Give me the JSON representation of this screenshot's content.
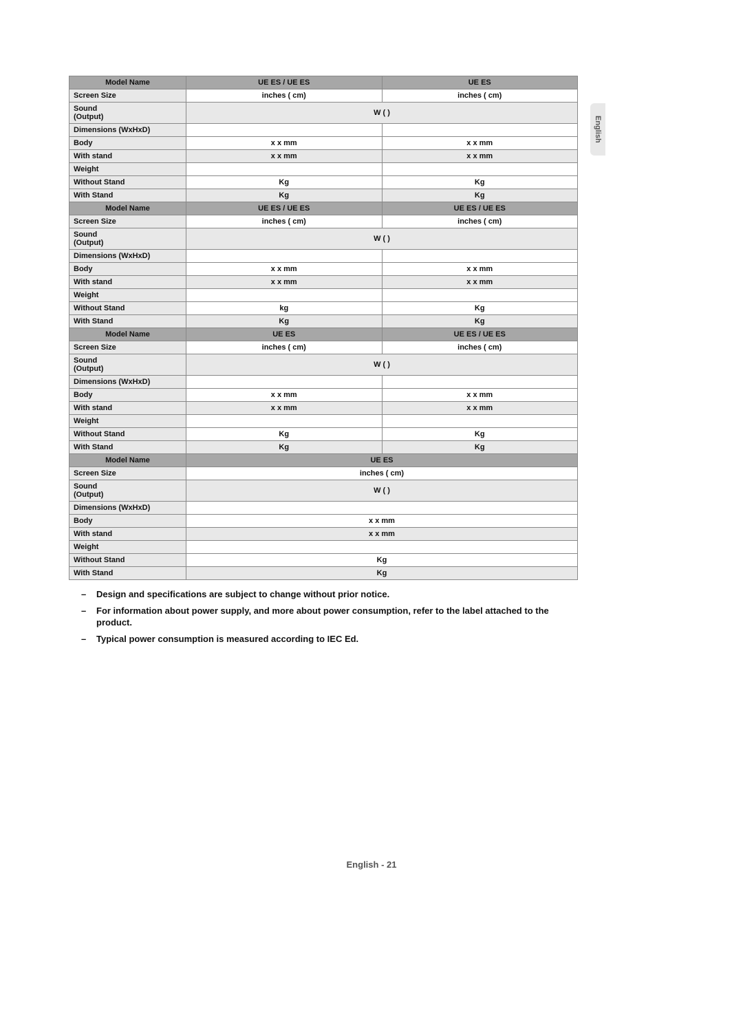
{
  "sideTab": "English",
  "footer": "English - 21",
  "labels": {
    "modelName": "Model Name",
    "screenSize": "Screen Size",
    "sound": "Sound",
    "output": "(Output)",
    "dimensions": "Dimensions (WxHxD)",
    "body": "Body",
    "withStandDim": "With stand",
    "weight": "Weight",
    "withoutStand": "Without Stand",
    "withStand": "With Stand"
  },
  "blocks": [
    {
      "models": [
        "UE ES  / UE ES",
        "UE ES"
      ],
      "screen": [
        " inches ( cm)",
        " inches ( cm)"
      ],
      "sound": " W ( )",
      "body": [
        " x  x  mm",
        " x  x  mm"
      ],
      "stand": [
        " x  x  mm",
        " x  x  mm"
      ],
      "wNoStand": [
        " Kg",
        " Kg"
      ],
      "wStand": [
        " Kg",
        " Kg"
      ]
    },
    {
      "models": [
        "UE ES  / UE ES",
        "UE ES  / UE ES"
      ],
      "screen": [
        " inches ( cm)",
        " inches ( cm)"
      ],
      "sound": " W ( )",
      "body": [
        " x  x  mm",
        " x  x  mm"
      ],
      "stand": [
        " x  x  mm",
        " x  x  mm"
      ],
      "wNoStand": [
        " kg",
        " Kg"
      ],
      "wStand": [
        " Kg",
        " Kg"
      ]
    },
    {
      "models": [
        "UE ES",
        "UE ES  / UE ES"
      ],
      "screen": [
        " inches ( cm)",
        " inches ( cm)"
      ],
      "sound": " W ( )",
      "body": [
        " x  x  mm",
        " x  x  mm"
      ],
      "stand": [
        " x  x  mm",
        " x  x  mm"
      ],
      "wNoStand": [
        " Kg",
        " Kg"
      ],
      "wStand": [
        " Kg",
        " Kg"
      ]
    }
  ],
  "block4": {
    "model": "UE ES",
    "screen": " inches ( cm)",
    "sound": " W ( )",
    "body": " x  x  mm",
    "stand": " x  x  mm",
    "wNoStand": " Kg",
    "wStand": " Kg"
  },
  "notes": [
    "Design and specifications are subject to change without prior notice.",
    "For information about power supply, and more about power consumption, refer to the label attached to the product.",
    "Typical power consumption is measured according to IEC  Ed."
  ]
}
